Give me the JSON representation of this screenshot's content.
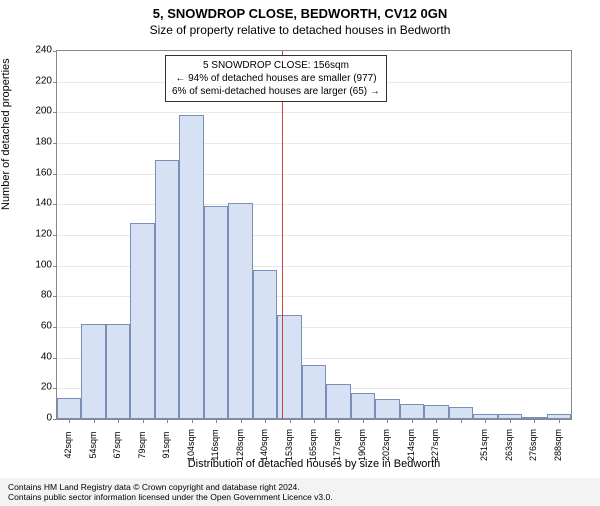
{
  "title": "5, SNOWDROP CLOSE, BEDWORTH, CV12 0GN",
  "subtitle": "Size of property relative to detached houses in Bedworth",
  "ylabel": "Number of detached properties",
  "xlabel": "Distribution of detached houses by size in Bedworth",
  "chart": {
    "type": "histogram",
    "bar_fill": "#d6e1f3",
    "bar_stroke": "#7a8fb8",
    "background": "#ffffff",
    "grid_color": "#e8e8e8",
    "ref_line_color": "#d04040",
    "ylim": [
      0,
      240
    ],
    "ytick_step": 20,
    "yticks": [
      0,
      20,
      40,
      60,
      80,
      100,
      120,
      140,
      160,
      180,
      200,
      220,
      240
    ],
    "xticks": [
      "42sqm",
      "54sqm",
      "67sqm",
      "79sqm",
      "91sqm",
      "104sqm",
      "116sqm",
      "128sqm",
      "140sqm",
      "153sqm",
      "165sqm",
      "177sqm",
      "190sqm",
      "202sqm",
      "214sqm",
      "227sqm",
      "",
      "251sqm",
      "263sqm",
      "276sqm",
      "288sqm"
    ],
    "values": [
      14,
      62,
      62,
      128,
      169,
      198,
      139,
      141,
      97,
      68,
      35,
      23,
      17,
      13,
      10,
      9,
      8,
      3,
      3,
      0,
      3
    ],
    "ref_line_index": 9.2
  },
  "annotation": {
    "line1": "5 SNOWDROP CLOSE: 156sqm",
    "line2": "← 94% of detached houses are smaller (977)",
    "line3": "6% of semi-detached houses are larger (65) →"
  },
  "footer": {
    "line1": "Contains HM Land Registry data © Crown copyright and database right 2024.",
    "line2": "Contains public sector information licensed under the Open Government Licence v3.0."
  }
}
